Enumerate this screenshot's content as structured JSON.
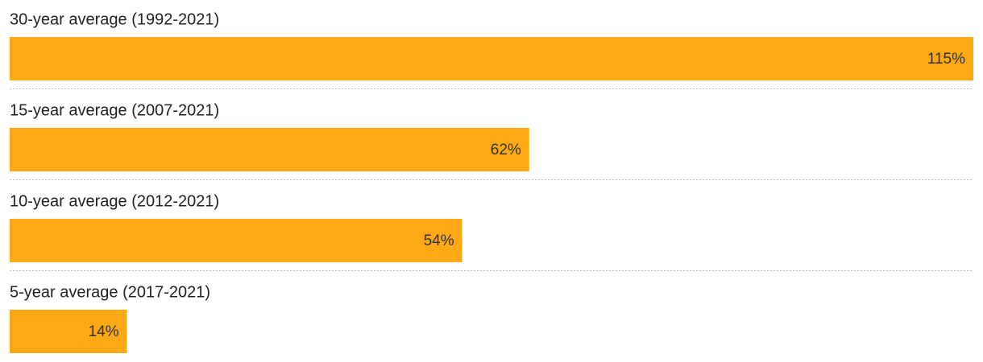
{
  "chart_data": {
    "type": "bar",
    "orientation": "horizontal",
    "categories": [
      "30-year average (1992-2021)",
      "15-year average (2007-2021)",
      "10-year average (2012-2021)",
      "5-year average (2017-2021)"
    ],
    "values": [
      115,
      62,
      54,
      14
    ],
    "value_labels": [
      "115%",
      "62%",
      "54%",
      "14%"
    ],
    "color": "#fca915"
  }
}
